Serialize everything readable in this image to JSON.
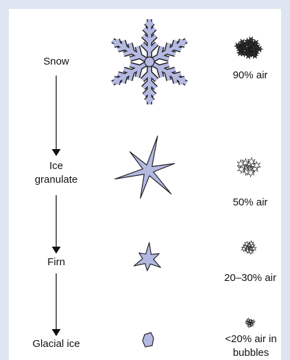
{
  "stages": [
    {
      "label": "Snow",
      "air": "90% air"
    },
    {
      "label": "Ice granulate",
      "air": "50% air"
    },
    {
      "label": "Firn",
      "air": "20–30% air"
    },
    {
      "label": "Glacial ice",
      "air": "<20% air in bubbles"
    }
  ]
}
